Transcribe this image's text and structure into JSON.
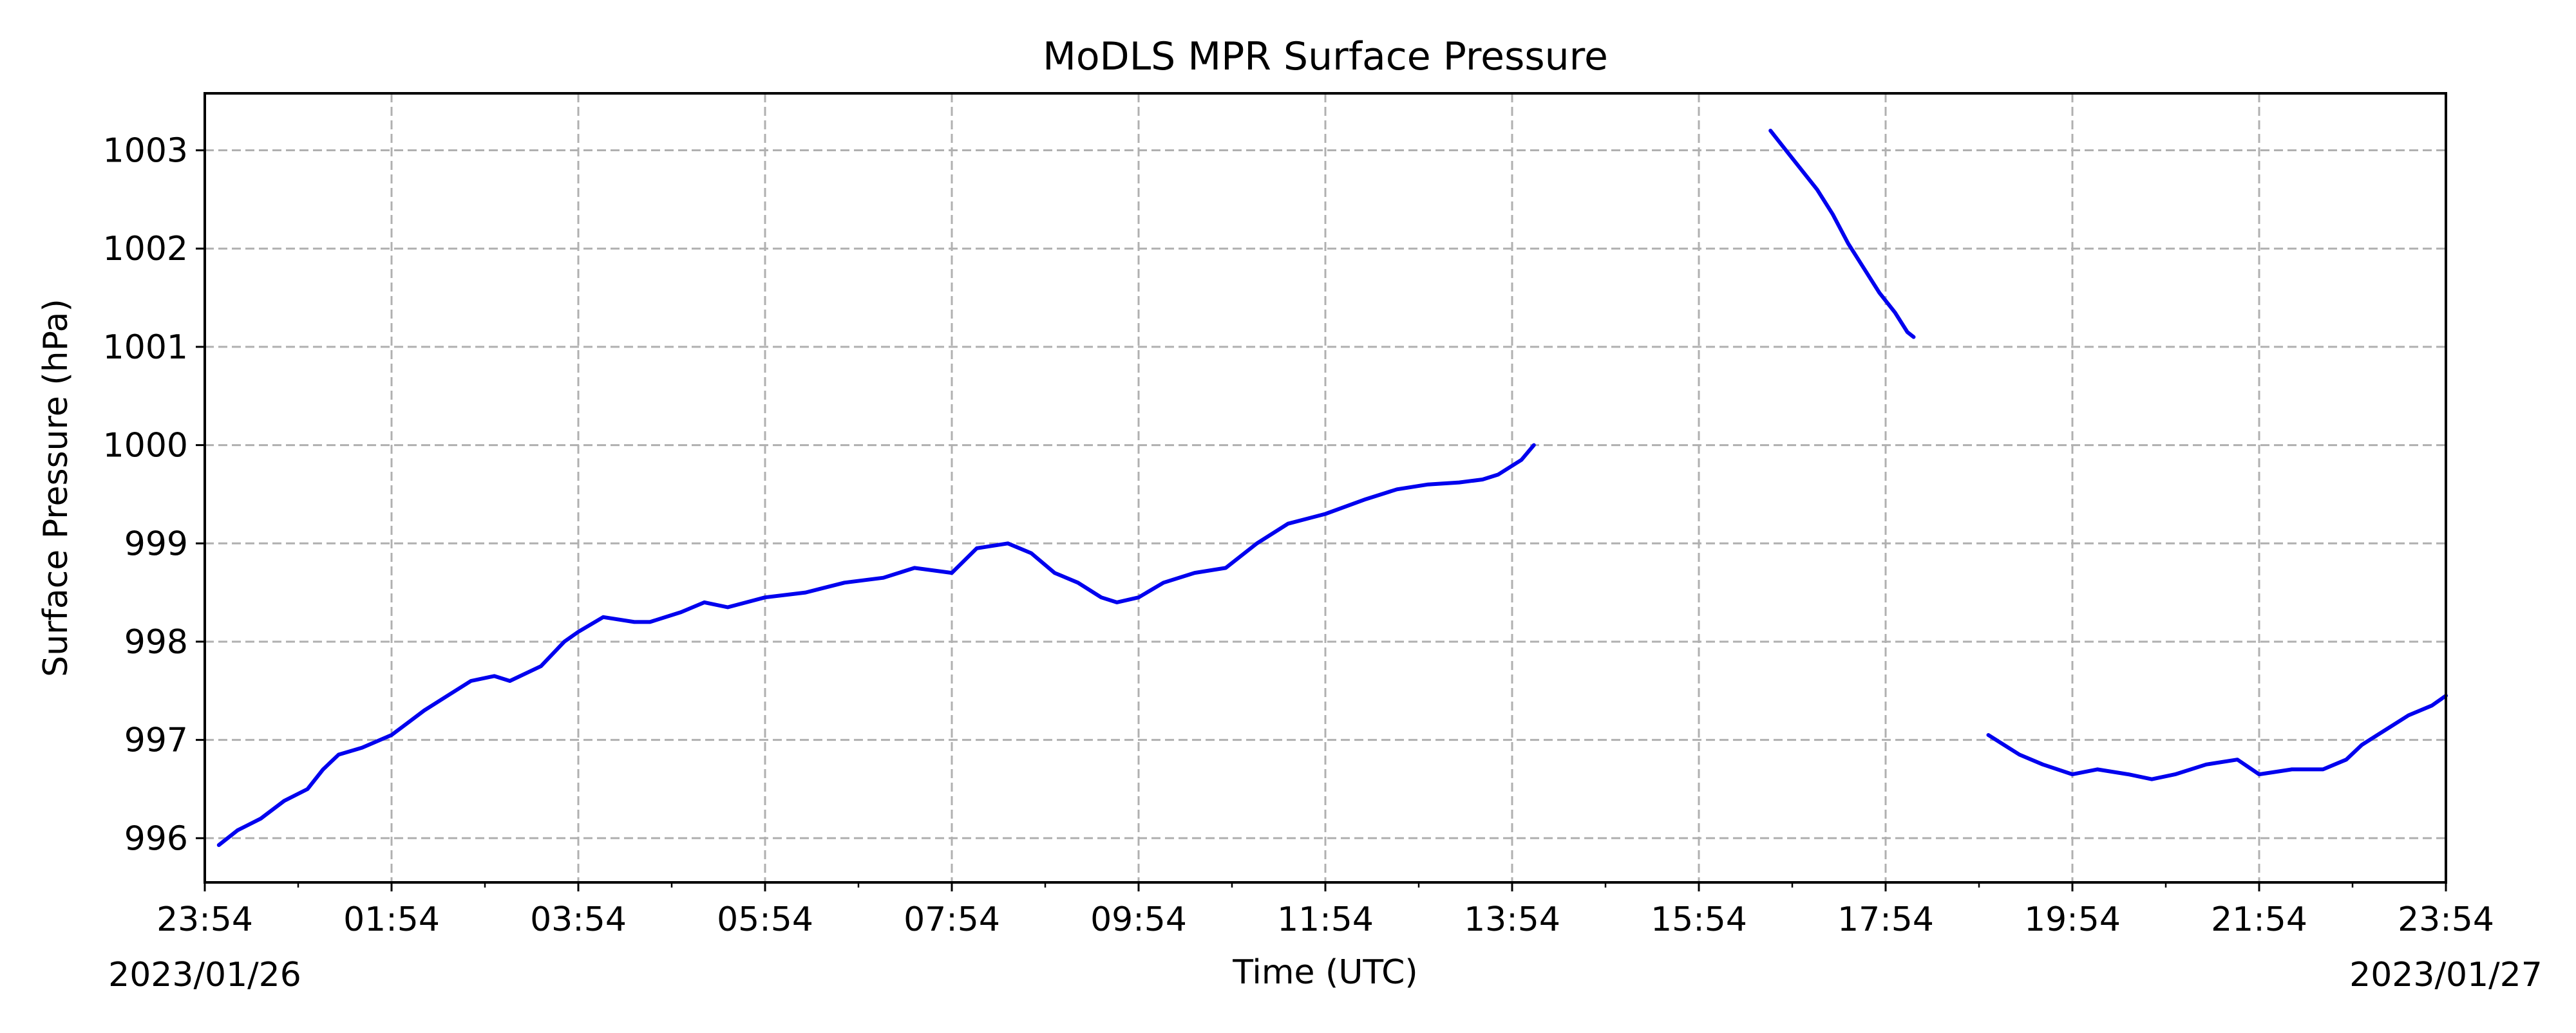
{
  "chart_data": {
    "type": "line",
    "title": "MoDLS MPR Surface Pressure",
    "xlabel": "Time (UTC)",
    "ylabel": "Surface Pressure (hPa)",
    "xlim": [
      "2023-01-26T23:54",
      "2023-01-27T23:54"
    ],
    "ylim": [
      995.55,
      1003.58
    ],
    "xticks": [
      {
        "t": "2023-01-26T23:54",
        "label": "23:54"
      },
      {
        "t": "2023-01-27T01:54",
        "label": "01:54"
      },
      {
        "t": "2023-01-27T03:54",
        "label": "03:54"
      },
      {
        "t": "2023-01-27T05:54",
        "label": "05:54"
      },
      {
        "t": "2023-01-27T07:54",
        "label": "07:54"
      },
      {
        "t": "2023-01-27T09:54",
        "label": "09:54"
      },
      {
        "t": "2023-01-27T11:54",
        "label": "11:54"
      },
      {
        "t": "2023-01-27T13:54",
        "label": "13:54"
      },
      {
        "t": "2023-01-27T15:54",
        "label": "15:54"
      },
      {
        "t": "2023-01-27T17:54",
        "label": "17:54"
      },
      {
        "t": "2023-01-27T19:54",
        "label": "19:54"
      },
      {
        "t": "2023-01-27T21:54",
        "label": "21:54"
      },
      {
        "t": "2023-01-27T23:54",
        "label": "23:54"
      }
    ],
    "date_labels": {
      "left": "2023/01/26",
      "right": "2023/01/27"
    },
    "yticks": [
      996,
      997,
      998,
      999,
      1000,
      1001,
      1002,
      1003
    ],
    "grid": true,
    "series_color": "#0000ee",
    "segments": [
      {
        "x": [
          "2023-01-27T00:03",
          "2023-01-27T00:15",
          "2023-01-27T00:30",
          "2023-01-27T00:45",
          "2023-01-27T01:00",
          "2023-01-27T01:10",
          "2023-01-27T01:20",
          "2023-01-27T01:35",
          "2023-01-27T01:54",
          "2023-01-27T02:15",
          "2023-01-27T02:30",
          "2023-01-27T02:45",
          "2023-01-27T03:00",
          "2023-01-27T03:10",
          "2023-01-27T03:30",
          "2023-01-27T03:45",
          "2023-01-27T03:54",
          "2023-01-27T04:10",
          "2023-01-27T04:30",
          "2023-01-27T04:40",
          "2023-01-27T05:00",
          "2023-01-27T05:15",
          "2023-01-27T05:30",
          "2023-01-27T05:54",
          "2023-01-27T06:20",
          "2023-01-27T06:45",
          "2023-01-27T07:10",
          "2023-01-27T07:30",
          "2023-01-27T07:54",
          "2023-01-27T08:10",
          "2023-01-27T08:30",
          "2023-01-27T08:45",
          "2023-01-27T09:00",
          "2023-01-27T09:15",
          "2023-01-27T09:30",
          "2023-01-27T09:40",
          "2023-01-27T09:54",
          "2023-01-27T10:10",
          "2023-01-27T10:30",
          "2023-01-27T10:50",
          "2023-01-27T11:10",
          "2023-01-27T11:30",
          "2023-01-27T11:54",
          "2023-01-27T12:20",
          "2023-01-27T12:40",
          "2023-01-27T13:00",
          "2023-01-27T13:20",
          "2023-01-27T13:35",
          "2023-01-27T13:45",
          "2023-01-27T14:00",
          "2023-01-27T14:08"
        ],
        "y": [
          995.93,
          996.08,
          996.2,
          996.38,
          996.5,
          996.7,
          996.85,
          996.92,
          997.05,
          997.3,
          997.45,
          997.6,
          997.65,
          997.6,
          997.75,
          998.0,
          998.1,
          998.25,
          998.2,
          998.2,
          998.3,
          998.4,
          998.35,
          998.45,
          998.5,
          998.6,
          998.65,
          998.75,
          998.7,
          998.95,
          999.0,
          998.9,
          998.7,
          998.6,
          998.45,
          998.4,
          998.45,
          998.6,
          998.7,
          998.75,
          999.0,
          999.2,
          999.3,
          999.45,
          999.55,
          999.6,
          999.62,
          999.65,
          999.7,
          999.85,
          1000.0
        ]
      },
      {
        "x": [
          "2023-01-27T16:40",
          "2023-01-27T16:50",
          "2023-01-27T17:00",
          "2023-01-27T17:10",
          "2023-01-27T17:20",
          "2023-01-27T17:30",
          "2023-01-27T17:40",
          "2023-01-27T17:50",
          "2023-01-27T18:00",
          "2023-01-27T18:08",
          "2023-01-27T18:12"
        ],
        "y": [
          1003.2,
          1003.0,
          1002.8,
          1002.6,
          1002.35,
          1002.05,
          1001.8,
          1001.55,
          1001.35,
          1001.15,
          1001.1
        ]
      },
      {
        "x": [
          "2023-01-27T19:00",
          "2023-01-27T19:10",
          "2023-01-27T19:20",
          "2023-01-27T19:35",
          "2023-01-27T19:54",
          "2023-01-27T20:10",
          "2023-01-27T20:30",
          "2023-01-27T20:45",
          "2023-01-27T21:00",
          "2023-01-27T21:20",
          "2023-01-27T21:40",
          "2023-01-27T21:54",
          "2023-01-27T22:15",
          "2023-01-27T22:35",
          "2023-01-27T22:50",
          "2023-01-27T23:00",
          "2023-01-27T23:15",
          "2023-01-27T23:30",
          "2023-01-27T23:45",
          "2023-01-27T23:54"
        ],
        "y": [
          997.05,
          996.95,
          996.85,
          996.75,
          996.65,
          996.7,
          996.65,
          996.6,
          996.65,
          996.75,
          996.8,
          996.65,
          996.7,
          996.7,
          996.8,
          996.95,
          997.1,
          997.25,
          997.35,
          997.45
        ]
      }
    ]
  }
}
